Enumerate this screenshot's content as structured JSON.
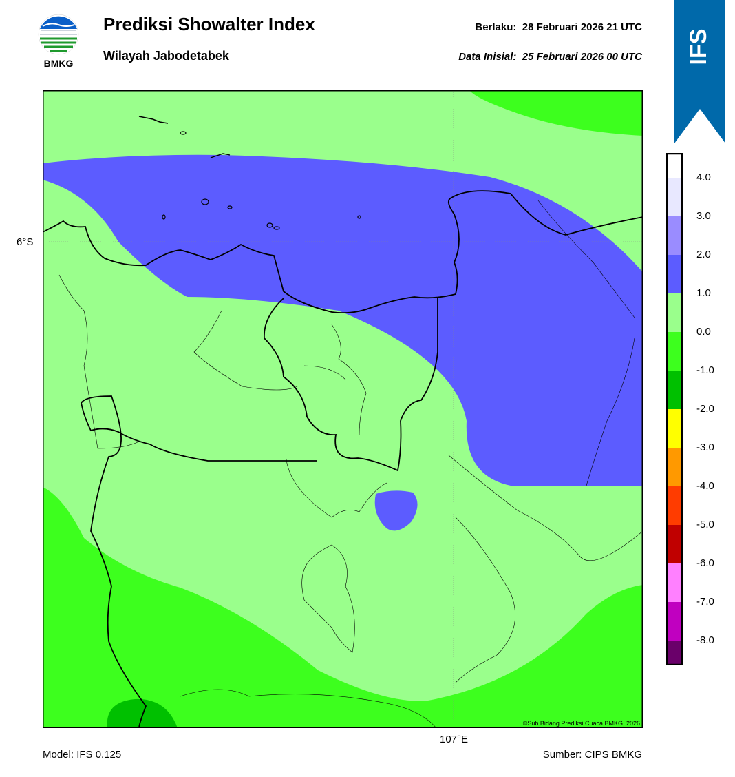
{
  "header": {
    "logo_text": "BMKG",
    "title": "Prediksi Showalter Index",
    "subtitle": "Wilayah Jabodetabek",
    "valid_label": "Berlaku:",
    "valid_time": "28 Februari 2026 21 UTC",
    "init_label": "Data Inisial:",
    "init_time": "25 Februari 2026 00 UTC"
  },
  "ribbon": {
    "label": "IFS",
    "color": "#0069aa"
  },
  "map": {
    "lat_label": "6°S",
    "lon_label": "107°E",
    "copyright": "©Sub Bidang Prediksi Cuaca BMKG, 2026"
  },
  "colorbar": {
    "ticks": [
      "4.0",
      "3.0",
      "2.0",
      "1.0",
      "0.0",
      "-1.0",
      "-2.0",
      "-3.0",
      "-4.0",
      "-5.0",
      "-6.0",
      "-7.0",
      "-8.0"
    ],
    "colors": [
      "#ffffff",
      "#e8e8ff",
      "#9a8cff",
      "#5c5cff",
      "#9aff8c",
      "#3dff1e",
      "#00c000",
      "#ffff00",
      "#ff9900",
      "#ff3c00",
      "#c00000",
      "#ff80ff",
      "#c000c0",
      "#6a006a"
    ]
  },
  "footer": {
    "model": "Model: IFS 0.125",
    "source": "Sumber: CIPS BMKG"
  }
}
